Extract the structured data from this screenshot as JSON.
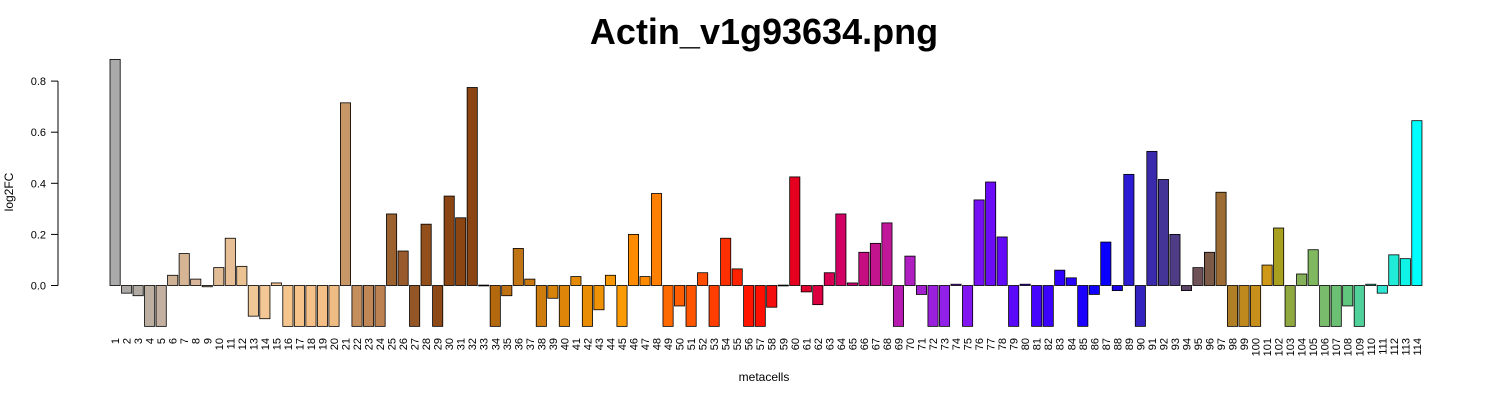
{
  "chart_data": {
    "type": "bar",
    "title": "Actin_v1g93634.png",
    "xlabel": "metacells",
    "ylabel": "log2FC",
    "ylim": [
      -0.16,
      0.9
    ],
    "yticks": [
      0.0,
      0.2,
      0.4,
      0.6,
      0.8
    ],
    "ytick_labels": [
      "0.0",
      "0.2",
      "0.4",
      "0.6",
      "0.8"
    ],
    "grid": false,
    "legend": "none",
    "categories": [
      "1",
      "2",
      "3",
      "4",
      "5",
      "6",
      "7",
      "8",
      "9",
      "10",
      "11",
      "12",
      "13",
      "14",
      "15",
      "16",
      "17",
      "18",
      "19",
      "20",
      "21",
      "22",
      "23",
      "24",
      "25",
      "26",
      "27",
      "28",
      "29",
      "30",
      "31",
      "32",
      "33",
      "34",
      "35",
      "36",
      "37",
      "38",
      "39",
      "40",
      "41",
      "42",
      "43",
      "44",
      "45",
      "46",
      "47",
      "48",
      "49",
      "50",
      "51",
      "52",
      "53",
      "54",
      "55",
      "56",
      "57",
      "58",
      "59",
      "60",
      "61",
      "62",
      "63",
      "64",
      "65",
      "66",
      "67",
      "68",
      "69",
      "70",
      "71",
      "72",
      "73",
      "74",
      "75",
      "76",
      "77",
      "78",
      "79",
      "80",
      "81",
      "82",
      "83",
      "84",
      "85",
      "86",
      "87",
      "88",
      "89",
      "90",
      "91",
      "92",
      "93",
      "94",
      "95",
      "96",
      "97",
      "98",
      "99",
      "100",
      "101",
      "102",
      "103",
      "104",
      "105",
      "106",
      "107",
      "108",
      "109",
      "110",
      "111",
      "112",
      "113",
      "114"
    ],
    "values": [
      0.885,
      -0.03,
      -0.04,
      -0.16,
      -0.16,
      0.04,
      0.125,
      0.025,
      -0.005,
      0.07,
      0.185,
      0.075,
      -0.12,
      -0.13,
      0.01,
      -0.16,
      -0.16,
      -0.16,
      -0.16,
      -0.16,
      0.715,
      -0.16,
      -0.16,
      -0.16,
      0.28,
      0.135,
      -0.16,
      0.24,
      -0.16,
      0.35,
      0.265,
      0.775,
      0.003,
      -0.16,
      -0.04,
      0.145,
      0.025,
      -0.16,
      -0.05,
      -0.16,
      0.035,
      -0.16,
      -0.095,
      0.04,
      -0.16,
      0.2,
      0.035,
      0.36,
      -0.16,
      -0.08,
      -0.16,
      0.05,
      -0.16,
      0.185,
      0.065,
      -0.16,
      -0.16,
      -0.085,
      0.003,
      0.425,
      -0.025,
      -0.075,
      0.05,
      0.28,
      0.01,
      0.13,
      0.165,
      0.245,
      -0.16,
      0.115,
      -0.035,
      -0.16,
      -0.16,
      0.005,
      -0.16,
      0.335,
      0.405,
      0.19,
      -0.16,
      0.005,
      -0.16,
      -0.16,
      0.06,
      0.03,
      -0.16,
      -0.035,
      0.17,
      -0.02,
      0.435,
      -0.16,
      0.525,
      0.415,
      0.2,
      -0.02,
      0.07,
      0.13,
      0.365,
      -0.16,
      -0.16,
      -0.16,
      0.08,
      0.225,
      -0.16,
      0.045,
      0.14,
      -0.16,
      -0.16,
      -0.08,
      -0.16,
      0.005,
      -0.03,
      0.12,
      0.105,
      0.645
    ],
    "colors": [
      "#aaaaaa",
      "#aca8a5",
      "#b0aaa3",
      "#bcaea1",
      "#c4b0a0",
      "#cfb295",
      "#d6b595",
      "#dab69a",
      "#dcbb9e",
      "#e2bc96",
      "#e6bf96",
      "#ebc393",
      "#f0c797",
      "#f2c695",
      "#f3c692",
      "#f5c58e",
      "#f6c48a",
      "#f5c188",
      "#f3bf86",
      "#efbc84",
      "#c89768",
      "#c48e5d",
      "#bf8755",
      "#bc8252",
      "#9b6230",
      "#9a5b2c",
      "#955626",
      "#924f1c",
      "#8e4a16",
      "#8b4513",
      "#8b4513",
      "#8b4513",
      "#b46c1c",
      "#b5690e",
      "#bf7214",
      "#c17414",
      "#c9780f",
      "#cf7c0e",
      "#d7820b",
      "#dc8508",
      "#e38a06",
      "#e98e04",
      "#ef9204",
      "#f59704",
      "#fb9a05",
      "#ff8c00",
      "#ff8a00",
      "#ff8000",
      "#ff6a00",
      "#ff5e00",
      "#ff5500",
      "#ff4b00",
      "#ff3e00",
      "#ff3000",
      "#ff2200",
      "#ff1500",
      "#ff1000",
      "#f50e0e",
      "#ee0e12",
      "#e6001f",
      "#e00030",
      "#dc0040",
      "#d70052",
      "#d10062",
      "#cc0071",
      "#c70e80",
      "#c2148c",
      "#c01898",
      "#b71ab0",
      "#ae1ec0",
      "#a220d0",
      "#9a20dd",
      "#9120e8",
      "#8a1cee",
      "#8116f0",
      "#7610f3",
      "#6c0cf6",
      "#630bf8",
      "#5a08fa",
      "#4f06fb",
      "#4504fc",
      "#3b03fd",
      "#3002fe",
      "#2601fe",
      "#1c00ff",
      "#1200ff",
      "#0a00ff",
      "#1800e8",
      "#2c1ad4",
      "#3422c0",
      "#3c2aac",
      "#443498",
      "#4e3c84",
      "#5c4466",
      "#6e5258",
      "#7c5a48",
      "#9c6c34",
      "#b07e24",
      "#c0891e",
      "#c8901a",
      "#d09818",
      "#aaa020",
      "#90a840",
      "#84b058",
      "#80b860",
      "#78bc6c",
      "#6cc074",
      "#60c67e",
      "#50d09a",
      "#40dcb8",
      "#30e6d0",
      "#20ecd8",
      "#10f4e8",
      "#00ffff"
    ]
  }
}
